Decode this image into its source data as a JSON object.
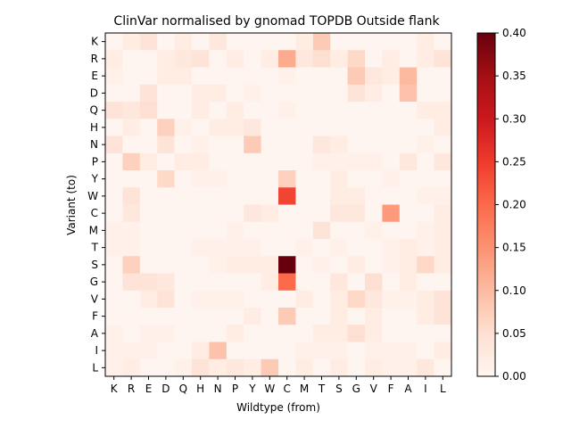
{
  "chart_data": {
    "type": "heatmap",
    "title": "ClinVar normalised by gnomad TOPDB Outside flank",
    "xlabel": "Wildtype (from)",
    "ylabel": "Variant (to)",
    "x_categories": [
      "K",
      "R",
      "E",
      "D",
      "Q",
      "H",
      "N",
      "P",
      "Y",
      "W",
      "C",
      "M",
      "T",
      "S",
      "G",
      "V",
      "F",
      "A",
      "I",
      "L"
    ],
    "y_categories": [
      "K",
      "R",
      "E",
      "D",
      "Q",
      "H",
      "N",
      "P",
      "Y",
      "W",
      "C",
      "M",
      "T",
      "S",
      "G",
      "V",
      "F",
      "A",
      "I",
      "L"
    ],
    "colorscale": "Reds",
    "vmin": 0.0,
    "vmax": 0.4,
    "colorbar_ticks": [
      "0.00",
      "0.05",
      "0.10",
      "0.15",
      "0.20",
      "0.25",
      "0.30",
      "0.35",
      "0.40"
    ],
    "values": [
      [
        0.0,
        0.02,
        0.04,
        0.0,
        0.02,
        0.0,
        0.03,
        0.0,
        0.0,
        0.0,
        0.0,
        0.02,
        0.08,
        0.0,
        0.0,
        0.0,
        0.0,
        0.0,
        0.02,
        0.0
      ],
      [
        0.02,
        0.0,
        0.0,
        0.02,
        0.03,
        0.04,
        0.0,
        0.02,
        0.0,
        0.02,
        0.12,
        0.03,
        0.05,
        0.02,
        0.06,
        0.0,
        0.02,
        0.0,
        0.02,
        0.04
      ],
      [
        0.01,
        0.0,
        0.0,
        0.02,
        0.02,
        0.0,
        0.0,
        0.0,
        0.0,
        0.0,
        0.01,
        0.0,
        0.0,
        0.0,
        0.08,
        0.03,
        0.02,
        0.1,
        0.0,
        0.0
      ],
      [
        0.0,
        0.0,
        0.04,
        0.0,
        0.0,
        0.02,
        0.02,
        0.0,
        0.01,
        0.0,
        0.0,
        0.0,
        0.0,
        0.0,
        0.04,
        0.02,
        0.0,
        0.09,
        0.0,
        0.0
      ],
      [
        0.04,
        0.03,
        0.05,
        0.0,
        0.0,
        0.02,
        0.0,
        0.02,
        0.0,
        0.0,
        0.01,
        0.0,
        0.0,
        0.0,
        0.0,
        0.0,
        0.0,
        0.0,
        0.02,
        0.02
      ],
      [
        0.0,
        0.02,
        0.0,
        0.07,
        0.01,
        0.0,
        0.02,
        0.02,
        0.03,
        0.0,
        0.0,
        0.0,
        0.0,
        0.0,
        0.0,
        0.0,
        0.0,
        0.0,
        0.0,
        0.02
      ],
      [
        0.04,
        0.0,
        0.0,
        0.04,
        0.0,
        0.01,
        0.0,
        0.0,
        0.08,
        0.0,
        0.0,
        0.0,
        0.03,
        0.02,
        0.0,
        0.0,
        0.0,
        0.0,
        0.01,
        0.0
      ],
      [
        0.0,
        0.07,
        0.02,
        0.0,
        0.02,
        0.02,
        0.0,
        0.0,
        0.0,
        0.0,
        0.0,
        0.0,
        0.01,
        0.01,
        0.01,
        0.01,
        0.0,
        0.03,
        0.0,
        0.03
      ],
      [
        0.0,
        0.0,
        0.0,
        0.06,
        0.0,
        0.01,
        0.01,
        0.0,
        0.0,
        0.0,
        0.07,
        0.0,
        0.0,
        0.02,
        0.0,
        0.0,
        0.01,
        0.0,
        0.0,
        0.0
      ],
      [
        0.0,
        0.04,
        0.0,
        0.0,
        0.0,
        0.0,
        0.0,
        0.0,
        0.0,
        0.0,
        0.24,
        0.0,
        0.0,
        0.02,
        0.02,
        0.0,
        0.0,
        0.0,
        0.01,
        0.01
      ],
      [
        0.0,
        0.03,
        0.0,
        0.0,
        0.0,
        0.0,
        0.0,
        0.0,
        0.03,
        0.02,
        0.0,
        0.0,
        0.0,
        0.03,
        0.03,
        0.0,
        0.14,
        0.0,
        0.0,
        0.02
      ],
      [
        0.01,
        0.01,
        0.0,
        0.0,
        0.0,
        0.0,
        0.0,
        0.01,
        0.0,
        0.0,
        0.0,
        0.0,
        0.04,
        0.0,
        0.0,
        0.01,
        0.0,
        0.0,
        0.01,
        0.02
      ],
      [
        0.01,
        0.01,
        0.0,
        0.0,
        0.0,
        0.01,
        0.01,
        0.01,
        0.01,
        0.0,
        0.0,
        0.01,
        0.0,
        0.01,
        0.0,
        0.0,
        0.01,
        0.02,
        0.01,
        0.02
      ],
      [
        0.0,
        0.07,
        0.0,
        0.0,
        0.0,
        0.0,
        0.01,
        0.02,
        0.02,
        0.02,
        0.4,
        0.0,
        0.01,
        0.0,
        0.02,
        0.0,
        0.01,
        0.02,
        0.06,
        0.02
      ],
      [
        0.0,
        0.04,
        0.04,
        0.03,
        0.0,
        0.0,
        0.0,
        0.0,
        0.0,
        0.02,
        0.2,
        0.0,
        0.0,
        0.03,
        0.0,
        0.05,
        0.0,
        0.02,
        0.0,
        0.0
      ],
      [
        0.0,
        0.0,
        0.02,
        0.04,
        0.0,
        0.01,
        0.01,
        0.01,
        0.0,
        0.0,
        0.0,
        0.02,
        0.0,
        0.02,
        0.06,
        0.03,
        0.01,
        0.01,
        0.02,
        0.04
      ],
      [
        0.0,
        0.0,
        0.0,
        0.0,
        0.0,
        0.0,
        0.0,
        0.0,
        0.02,
        0.0,
        0.08,
        0.0,
        0.0,
        0.02,
        0.0,
        0.02,
        0.0,
        0.0,
        0.02,
        0.04
      ],
      [
        0.01,
        0.0,
        0.01,
        0.01,
        0.0,
        0.0,
        0.0,
        0.02,
        0.0,
        0.0,
        0.0,
        0.0,
        0.02,
        0.02,
        0.05,
        0.02,
        0.0,
        0.0,
        0.0,
        0.0
      ],
      [
        0.01,
        0.01,
        0.01,
        0.0,
        0.0,
        0.02,
        0.09,
        0.0,
        0.0,
        0.0,
        0.0,
        0.01,
        0.01,
        0.01,
        0.0,
        0.01,
        0.01,
        0.01,
        0.0,
        0.02
      ],
      [
        0.01,
        0.02,
        0.0,
        0.0,
        0.01,
        0.04,
        0.02,
        0.03,
        0.02,
        0.08,
        0.0,
        0.02,
        0.0,
        0.02,
        0.0,
        0.02,
        0.01,
        0.01,
        0.03,
        0.0
      ]
    ]
  }
}
